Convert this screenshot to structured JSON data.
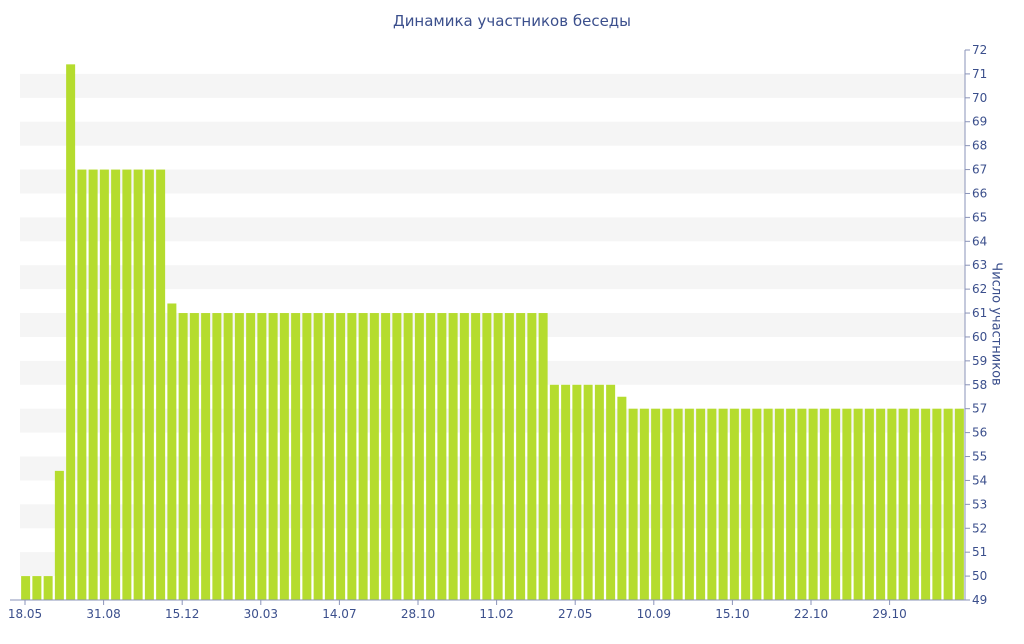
{
  "chart_data": {
    "type": "bar",
    "title": "Динамика участников беседы",
    "ylabel": "Число участников",
    "xlabel": "",
    "ylim": [
      49,
      72
    ],
    "yticks": [
      49,
      50,
      51,
      52,
      53,
      54,
      55,
      56,
      57,
      58,
      59,
      60,
      61,
      62,
      63,
      64,
      65,
      66,
      67,
      68,
      69,
      70,
      71,
      72
    ],
    "x_tick_labels": [
      "18.05",
      "31.08",
      "15.12",
      "30.03",
      "14.07",
      "28.10",
      "11.02",
      "27.05",
      "10.09",
      "15.10",
      "22.10",
      "29.10"
    ],
    "grid": "horizontal alternating bands",
    "colors": {
      "bar": "#b5dc2e",
      "band": "#f5f5f5",
      "text": "#3b4f8c",
      "axis": "#8a93b8"
    },
    "values": [
      50,
      50,
      50,
      54.4,
      71.4,
      67,
      67,
      67,
      67,
      67,
      67,
      67,
      67,
      61.4,
      61,
      61,
      61,
      61,
      61,
      61,
      61,
      61,
      61,
      61,
      61,
      61,
      61,
      61,
      61,
      61,
      61,
      61,
      61,
      61,
      61,
      61,
      61,
      61,
      61,
      61,
      61,
      61,
      61,
      61,
      61,
      61,
      61,
      58,
      58,
      58,
      58,
      58,
      58,
      57.5,
      57,
      57,
      57,
      57,
      57,
      57,
      57,
      57,
      57,
      57,
      57,
      57,
      57,
      57,
      57,
      57,
      57,
      57,
      57,
      57,
      57,
      57,
      57,
      57,
      57,
      57,
      57,
      57,
      57,
      57
    ]
  }
}
